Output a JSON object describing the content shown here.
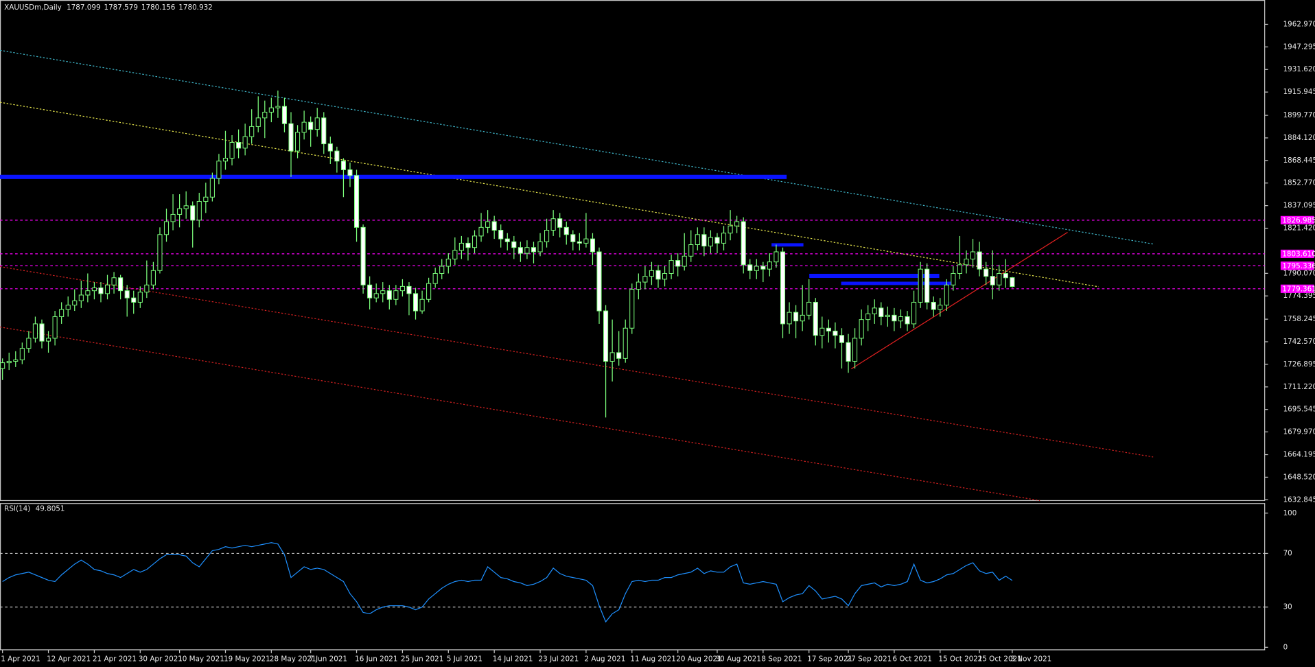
{
  "chart_data": [
    {
      "type": "candlestick",
      "title": "XAUUSDm,Daily",
      "bull_color": "#000000",
      "bear_color": "#ffffff",
      "wick_color": "#7cff7c",
      "ylim": [
        1632.3,
        1978.7
      ],
      "yticks": [
        {
          "value": 1962.97,
          "label": "1962.970"
        },
        {
          "value": 1947.295,
          "label": "1947.295"
        },
        {
          "value": 1931.62,
          "label": "1931.620"
        },
        {
          "value": 1915.945,
          "label": "1915.945"
        },
        {
          "value": 1899.77,
          "label": "1899.770"
        },
        {
          "value": 1884.12,
          "label": "1884.120"
        },
        {
          "value": 1868.445,
          "label": "1868.445"
        },
        {
          "value": 1852.77,
          "label": "1852.770"
        },
        {
          "value": 1837.095,
          "label": "1837.095"
        },
        {
          "value": 1821.42,
          "label": "1821.420"
        },
        {
          "value": 1790.07,
          "label": "1790.070"
        },
        {
          "value": 1774.395,
          "label": "1774.395"
        },
        {
          "value": 1758.245,
          "label": "1758.245"
        },
        {
          "value": 1742.57,
          "label": "1742.570"
        },
        {
          "value": 1726.895,
          "label": "1726.895"
        },
        {
          "value": 1711.22,
          "label": "1711.220"
        },
        {
          "value": 1695.545,
          "label": "1695.545"
        },
        {
          "value": 1679.97,
          "label": "1679.970"
        },
        {
          "value": 1664.195,
          "label": "1664.195"
        },
        {
          "value": 1648.52,
          "label": "1648.520"
        },
        {
          "value": 1632.845,
          "label": "1632.845"
        }
      ],
      "levels": {
        "values": [
          1826.985,
          1803.61,
          1795.336,
          1779.361
        ],
        "value_labels": [
          "1826.985",
          "1803.610",
          "1795.336",
          "1779.361"
        ],
        "color": "#ff00ff"
      },
      "candles": [
        [
          1724,
          1731,
          1716,
          1728
        ],
        [
          1728,
          1735,
          1723,
          1729
        ],
        [
          1729,
          1736,
          1725,
          1730
        ],
        [
          1730,
          1742,
          1727,
          1738
        ],
        [
          1738,
          1750,
          1735,
          1745
        ],
        [
          1745,
          1760,
          1742,
          1755
        ],
        [
          1755,
          1758,
          1738,
          1743
        ],
        [
          1743,
          1750,
          1735,
          1745
        ],
        [
          1745,
          1764,
          1740,
          1760
        ],
        [
          1760,
          1770,
          1755,
          1765
        ],
        [
          1765,
          1774,
          1760,
          1768
        ],
        [
          1768,
          1779,
          1764,
          1771
        ],
        [
          1771,
          1785,
          1766,
          1775
        ],
        [
          1775,
          1790,
          1770,
          1778
        ],
        [
          1778,
          1784,
          1772,
          1780
        ],
        [
          1780,
          1784,
          1770,
          1776
        ],
        [
          1776,
          1789,
          1772,
          1782
        ],
        [
          1782,
          1791,
          1776,
          1787
        ],
        [
          1787,
          1789,
          1772,
          1778
        ],
        [
          1778,
          1782,
          1760,
          1773
        ],
        [
          1773,
          1778,
          1762,
          1770
        ],
        [
          1770,
          1781,
          1766,
          1777
        ],
        [
          1777,
          1799,
          1773,
          1782
        ],
        [
          1782,
          1798,
          1779,
          1792
        ],
        [
          1792,
          1822,
          1790,
          1817
        ],
        [
          1817,
          1835,
          1812,
          1826
        ],
        [
          1826,
          1845,
          1820,
          1831
        ],
        [
          1831,
          1845,
          1822,
          1835
        ],
        [
          1835,
          1847,
          1828,
          1837
        ],
        [
          1837,
          1840,
          1808,
          1827
        ],
        [
          1827,
          1846,
          1822,
          1840
        ],
        [
          1840,
          1853,
          1832,
          1843
        ],
        [
          1843,
          1860,
          1840,
          1856
        ],
        [
          1856,
          1873,
          1852,
          1868
        ],
        [
          1868,
          1889,
          1862,
          1870
        ],
        [
          1870,
          1886,
          1865,
          1881
        ],
        [
          1881,
          1890,
          1870,
          1877
        ],
        [
          1877,
          1894,
          1872,
          1885
        ],
        [
          1885,
          1904,
          1880,
          1892
        ],
        [
          1892,
          1913,
          1888,
          1898
        ],
        [
          1898,
          1910,
          1884,
          1902
        ],
        [
          1902,
          1912,
          1895,
          1905
        ],
        [
          1905,
          1917,
          1898,
          1906
        ],
        [
          1906,
          1912,
          1888,
          1894
        ],
        [
          1894,
          1902,
          1857,
          1875
        ],
        [
          1875,
          1893,
          1870,
          1888
        ],
        [
          1888,
          1903,
          1883,
          1895
        ],
        [
          1895,
          1899,
          1878,
          1890
        ],
        [
          1890,
          1905,
          1885,
          1898
        ],
        [
          1898,
          1902,
          1873,
          1880
        ],
        [
          1880,
          1885,
          1866,
          1875
        ],
        [
          1875,
          1878,
          1860,
          1868
        ],
        [
          1868,
          1870,
          1843,
          1862
        ],
        [
          1862,
          1867,
          1850,
          1858
        ],
        [
          1858,
          1862,
          1812,
          1822
        ],
        [
          1822,
          1824,
          1776,
          1782
        ],
        [
          1782,
          1788,
          1765,
          1773
        ],
        [
          1773,
          1783,
          1770,
          1776
        ],
        [
          1776,
          1784,
          1770,
          1778
        ],
        [
          1778,
          1782,
          1765,
          1772
        ],
        [
          1772,
          1782,
          1768,
          1778
        ],
        [
          1778,
          1786,
          1774,
          1781
        ],
        [
          1781,
          1784,
          1761,
          1776
        ],
        [
          1776,
          1780,
          1758,
          1764
        ],
        [
          1764,
          1778,
          1762,
          1772
        ],
        [
          1772,
          1787,
          1770,
          1783
        ],
        [
          1783,
          1794,
          1780,
          1790
        ],
        [
          1790,
          1800,
          1786,
          1795
        ],
        [
          1795,
          1804,
          1790,
          1800
        ],
        [
          1800,
          1815,
          1796,
          1806
        ],
        [
          1806,
          1816,
          1800,
          1811
        ],
        [
          1811,
          1815,
          1799,
          1808
        ],
        [
          1808,
          1820,
          1804,
          1816
        ],
        [
          1816,
          1832,
          1812,
          1822
        ],
        [
          1822,
          1834,
          1818,
          1826
        ],
        [
          1826,
          1830,
          1814,
          1820
        ],
        [
          1820,
          1824,
          1808,
          1814
        ],
        [
          1814,
          1818,
          1806,
          1812
        ],
        [
          1812,
          1816,
          1800,
          1808
        ],
        [
          1808,
          1812,
          1798,
          1804
        ],
        [
          1804,
          1813,
          1800,
          1808
        ],
        [
          1808,
          1812,
          1797,
          1805
        ],
        [
          1805,
          1818,
          1802,
          1812
        ],
        [
          1812,
          1828,
          1808,
          1820
        ],
        [
          1820,
          1834,
          1816,
          1828
        ],
        [
          1828,
          1832,
          1815,
          1822
        ],
        [
          1822,
          1826,
          1810,
          1817
        ],
        [
          1817,
          1820,
          1806,
          1812
        ],
        [
          1812,
          1818,
          1806,
          1811
        ],
        [
          1811,
          1832,
          1808,
          1814
        ],
        [
          1814,
          1818,
          1796,
          1805
        ],
        [
          1805,
          1808,
          1755,
          1764
        ],
        [
          1764,
          1768,
          1690,
          1729
        ],
        [
          1729,
          1758,
          1715,
          1735
        ],
        [
          1735,
          1750,
          1726,
          1731
        ],
        [
          1731,
          1758,
          1728,
          1752
        ],
        [
          1752,
          1783,
          1748,
          1779
        ],
        [
          1779,
          1790,
          1772,
          1784
        ],
        [
          1784,
          1795,
          1779,
          1788
        ],
        [
          1788,
          1798,
          1782,
          1792
        ],
        [
          1792,
          1796,
          1780,
          1786
        ],
        [
          1786,
          1795,
          1781,
          1790
        ],
        [
          1790,
          1803,
          1786,
          1799
        ],
        [
          1799,
          1804,
          1788,
          1795
        ],
        [
          1795,
          1818,
          1792,
          1802
        ],
        [
          1802,
          1820,
          1798,
          1810
        ],
        [
          1810,
          1822,
          1806,
          1817
        ],
        [
          1817,
          1822,
          1802,
          1809
        ],
        [
          1809,
          1820,
          1804,
          1815
        ],
        [
          1815,
          1818,
          1804,
          1811
        ],
        [
          1811,
          1823,
          1806,
          1818
        ],
        [
          1818,
          1834,
          1813,
          1823
        ],
        [
          1823,
          1830,
          1818,
          1826
        ],
        [
          1826,
          1829,
          1790,
          1796
        ],
        [
          1796,
          1800,
          1786,
          1792
        ],
        [
          1792,
          1800,
          1786,
          1795
        ],
        [
          1795,
          1798,
          1784,
          1793
        ],
        [
          1793,
          1804,
          1788,
          1798
        ],
        [
          1798,
          1810,
          1794,
          1805
        ],
        [
          1805,
          1808,
          1745,
          1755
        ],
        [
          1755,
          1770,
          1748,
          1763
        ],
        [
          1763,
          1768,
          1745,
          1757
        ],
        [
          1757,
          1782,
          1750,
          1761
        ],
        [
          1761,
          1786,
          1758,
          1770
        ],
        [
          1770,
          1773,
          1740,
          1747
        ],
        [
          1747,
          1760,
          1738,
          1752
        ],
        [
          1752,
          1758,
          1742,
          1750
        ],
        [
          1750,
          1756,
          1738,
          1747
        ],
        [
          1747,
          1752,
          1724,
          1742
        ],
        [
          1742,
          1748,
          1721,
          1729
        ],
        [
          1729,
          1752,
          1724,
          1745
        ],
        [
          1745,
          1765,
          1740,
          1758
        ],
        [
          1758,
          1768,
          1750,
          1762
        ],
        [
          1762,
          1772,
          1755,
          1766
        ],
        [
          1766,
          1770,
          1754,
          1760
        ],
        [
          1760,
          1767,
          1753,
          1761
        ],
        [
          1761,
          1766,
          1750,
          1757
        ],
        [
          1757,
          1765,
          1752,
          1760
        ],
        [
          1760,
          1764,
          1750,
          1755
        ],
        [
          1755,
          1778,
          1752,
          1770
        ],
        [
          1770,
          1798,
          1766,
          1793
        ],
        [
          1793,
          1797,
          1765,
          1770
        ],
        [
          1770,
          1774,
          1760,
          1765
        ],
        [
          1765,
          1773,
          1760,
          1768
        ],
        [
          1768,
          1786,
          1764,
          1782
        ],
        [
          1782,
          1795,
          1778,
          1790
        ],
        [
          1790,
          1816,
          1786,
          1796
        ],
        [
          1796,
          1806,
          1790,
          1800
        ],
        [
          1800,
          1814,
          1794,
          1805
        ],
        [
          1805,
          1812,
          1788,
          1793
        ],
        [
          1793,
          1798,
          1782,
          1788
        ],
        [
          1788,
          1806,
          1772,
          1782
        ],
        [
          1782,
          1796,
          1778,
          1790
        ],
        [
          1790,
          1800,
          1780,
          1787
        ],
        [
          1787.099,
          1787.579,
          1780.156,
          1780.932
        ]
      ]
    },
    {
      "type": "line",
      "title": "RSI(14)",
      "color": "#1e90ff",
      "grid": true,
      "ylim": [
        0,
        100
      ],
      "yticks": [
        0,
        30,
        70,
        100
      ],
      "xticks": [
        {
          "value": 0,
          "label": "1 Apr 2021"
        },
        {
          "value": 7,
          "label": "12 Apr 2021"
        },
        {
          "value": 14,
          "label": "21 Apr 2021"
        },
        {
          "value": 21,
          "label": "30 Apr 2021"
        },
        {
          "value": 27,
          "label": "10 May 2021"
        },
        {
          "value": 34,
          "label": "19 May 2021"
        },
        {
          "value": 41,
          "label": "28 May 2021"
        },
        {
          "value": 47,
          "label": "7 Jun 2021"
        },
        {
          "value": 54,
          "label": "16 Jun 2021"
        },
        {
          "value": 61,
          "label": "25 Jun 2021"
        },
        {
          "value": 68,
          "label": "5 Jul 2021"
        },
        {
          "value": 75,
          "label": "14 Jul 2021"
        },
        {
          "value": 82,
          "label": "23 Jul 2021"
        },
        {
          "value": 89,
          "label": "2 Aug 2021"
        },
        {
          "value": 96,
          "label": "11 Aug 2021"
        },
        {
          "value": 103,
          "label": "20 Aug 2021"
        },
        {
          "value": 109,
          "label": "30 Aug 2021"
        },
        {
          "value": 116,
          "label": "8 Sep 2021"
        },
        {
          "value": 123,
          "label": "17 Sep 2021"
        },
        {
          "value": 129,
          "label": "27 Sep 2021"
        },
        {
          "value": 136,
          "label": "6 Oct 2021"
        },
        {
          "value": 143,
          "label": "15 Oct 2021"
        },
        {
          "value": 149,
          "label": "25 Oct 2021"
        },
        {
          "value": 154,
          "label": "3 Nov 2021"
        }
      ],
      "values": [
        49,
        52,
        54,
        55,
        56,
        54,
        52,
        50,
        49,
        54,
        58,
        62,
        65,
        62,
        58,
        57,
        55,
        54,
        52,
        55,
        58,
        56,
        58,
        62,
        66,
        69,
        69,
        69,
        68,
        63,
        60,
        66,
        72,
        73,
        75,
        74,
        75,
        76,
        75,
        76,
        77,
        78,
        77,
        69,
        52,
        56,
        60,
        58,
        59,
        58,
        55,
        52,
        49,
        40,
        34,
        26,
        25,
        28,
        30,
        31,
        31,
        31,
        30,
        28,
        30,
        36,
        40,
        44,
        47,
        49,
        50,
        49,
        50,
        50,
        60,
        56,
        52,
        51,
        49,
        48,
        46,
        47,
        49,
        52,
        59,
        55,
        53,
        52,
        51,
        50,
        46,
        31,
        19,
        25,
        28,
        40,
        49,
        50,
        49,
        50,
        50,
        52,
        52,
        54,
        55,
        56,
        59,
        55,
        57,
        56,
        56,
        60,
        62,
        48,
        47,
        48,
        49,
        48,
        47,
        34,
        37,
        39,
        40,
        46,
        42,
        36,
        37,
        38,
        36,
        31,
        40,
        46,
        47,
        48,
        45,
        47,
        46,
        47,
        49,
        62,
        50,
        48,
        49,
        51,
        54,
        55,
        58,
        61,
        63,
        57,
        55,
        56,
        50,
        53,
        49.8051
      ]
    }
  ]
}
